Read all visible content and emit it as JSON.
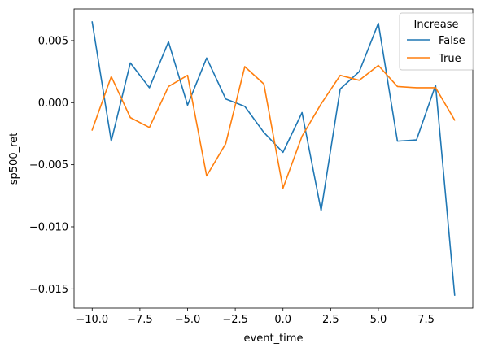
{
  "chart_data": {
    "type": "line",
    "xlabel": "event_time",
    "ylabel": "sp500_ret",
    "xlim": [
      -10.95,
      9.95
    ],
    "ylim": [
      -0.01655,
      0.00755
    ],
    "x_ticks": [
      -10.0,
      -7.5,
      -5.0,
      -2.5,
      0.0,
      2.5,
      5.0,
      7.5
    ],
    "x_tick_labels": [
      "−10.0",
      "−7.5",
      "−5.0",
      "−2.5",
      "0.0",
      "2.5",
      "5.0",
      "7.5"
    ],
    "y_ticks": [
      0.005,
      0.0,
      -0.005,
      -0.01,
      -0.015
    ],
    "y_tick_labels": [
      "0.005",
      "0.000",
      "−0.005",
      "−0.010",
      "−0.015"
    ],
    "grid": false,
    "legend": {
      "title": "Increase",
      "placement": "top-right"
    },
    "x": [
      -10,
      -9,
      -8,
      -7,
      -6,
      -5,
      -4,
      -3,
      -2,
      -1,
      0,
      1,
      2,
      3,
      4,
      5,
      6,
      7,
      8,
      9
    ],
    "series": [
      {
        "name": "False",
        "color": "#1f77b4",
        "values": [
          0.0065,
          -0.0031,
          0.0032,
          0.0012,
          0.0049,
          -0.0002,
          0.0036,
          0.0003,
          -0.0003,
          -0.0024,
          -0.004,
          -0.0008,
          -0.0087,
          0.0011,
          0.0025,
          0.0064,
          -0.0031,
          -0.003,
          0.0014,
          -0.0155
        ]
      },
      {
        "name": "True",
        "color": "#ff7f0e",
        "values": [
          -0.0022,
          0.0021,
          -0.0012,
          -0.002,
          0.0013,
          0.0022,
          -0.0059,
          -0.0033,
          0.0029,
          0.0015,
          -0.0069,
          -0.0027,
          -0.0001,
          0.0022,
          0.0018,
          0.003,
          0.0013,
          0.0012,
          0.0012,
          -0.0014
        ]
      }
    ]
  }
}
